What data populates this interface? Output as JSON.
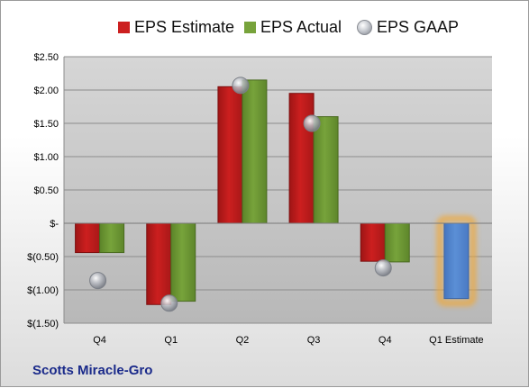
{
  "company": "Scotts Miracle-Gro",
  "colors": {
    "estimate": "#cc1f1f",
    "actual": "#77a33b",
    "gaap": "#b9bcc3",
    "forecast": "#5b8fd6",
    "forecast_glow": "#f0a838"
  },
  "legend": {
    "estimate": "EPS Estimate",
    "actual": "EPS Actual",
    "gaap": "EPS GAAP"
  },
  "chart_data": {
    "type": "bar",
    "categories": [
      "Q4",
      "Q1",
      "Q2",
      "Q3",
      "Q4",
      "Q1 Estimate"
    ],
    "series": [
      {
        "name": "EPS Estimate",
        "values": [
          -0.44,
          -1.22,
          2.05,
          1.95,
          -0.57,
          -1.13
        ]
      },
      {
        "name": "EPS Actual",
        "values": [
          -0.44,
          -1.17,
          2.15,
          1.6,
          -0.58,
          null
        ]
      },
      {
        "name": "EPS GAAP",
        "values": [
          -0.86,
          -1.2,
          2.07,
          1.5,
          -0.67,
          null
        ]
      }
    ],
    "yticks": [
      2.5,
      2.0,
      1.5,
      1.0,
      0.5,
      0,
      -0.5,
      -1.0,
      -1.5
    ],
    "ytick_labels": [
      "$2.50",
      "$2.00",
      "$1.50",
      "$1.00",
      "$0.50",
      "$-",
      "$(0.50)",
      "$(1.00)",
      "$(1.50)"
    ],
    "ylim": [
      -1.5,
      2.5
    ],
    "grid": true,
    "legend_position": "top"
  }
}
